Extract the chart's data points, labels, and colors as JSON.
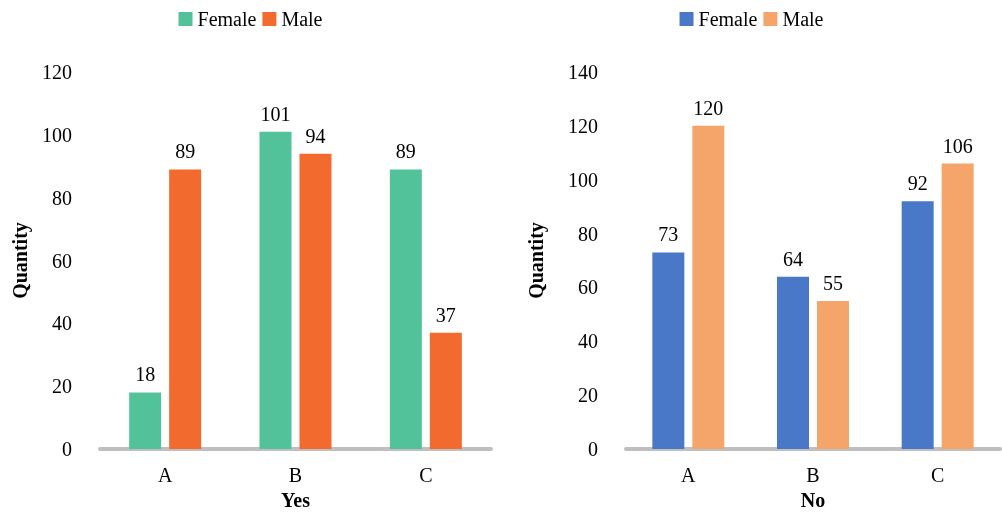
{
  "chart_data": [
    {
      "type": "bar",
      "xlabel": "Yes",
      "ylabel": "Quantity",
      "categories": [
        "A",
        "B",
        "C"
      ],
      "series": [
        {
          "name": "Female",
          "color": "#52c29a",
          "values": [
            18,
            101,
            89
          ]
        },
        {
          "name": "Male",
          "color": "#f26a2e",
          "values": [
            89,
            94,
            37
          ]
        }
      ],
      "ylim": [
        0,
        120
      ],
      "yticks": [
        0,
        20,
        40,
        60,
        80,
        100,
        120
      ],
      "grid": false,
      "legend": "top",
      "data_labels": true
    },
    {
      "type": "bar",
      "xlabel": "No",
      "ylabel": "Quantity",
      "categories": [
        "A",
        "B",
        "C"
      ],
      "series": [
        {
          "name": "Female",
          "color": "#4a78c8",
          "values": [
            73,
            64,
            92
          ]
        },
        {
          "name": "Male",
          "color": "#f5a46a",
          "values": [
            120,
            55,
            106
          ]
        }
      ],
      "ylim": [
        0,
        140
      ],
      "yticks": [
        0,
        20,
        40,
        60,
        80,
        100,
        120,
        140
      ],
      "grid": false,
      "legend": "top",
      "data_labels": true
    }
  ]
}
